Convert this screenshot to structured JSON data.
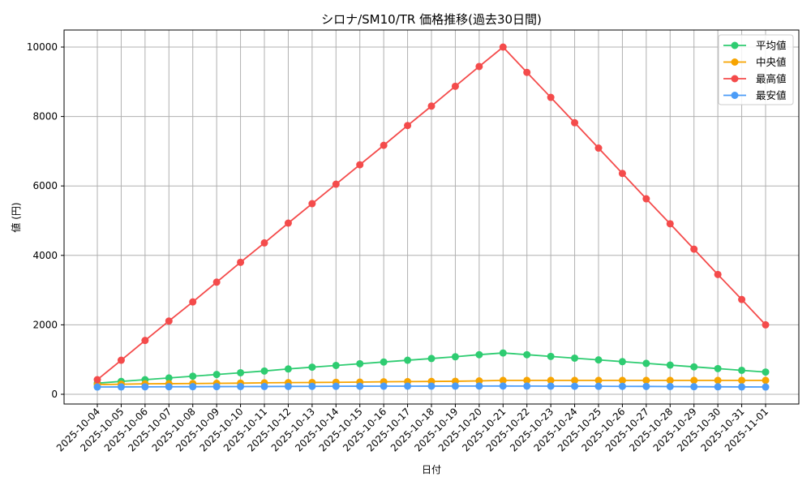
{
  "chart_data": {
    "type": "line",
    "title": "シロナ/SM10/TR 価格推移(過去30日間)",
    "xlabel": "日付",
    "ylabel": "値 (円)",
    "ylim": [
      -300,
      10500
    ],
    "yticks": [
      0,
      2000,
      4000,
      6000,
      8000,
      10000
    ],
    "grid": true,
    "legend_position": "upper right",
    "x": [
      "2025-10-04",
      "2025-10-05",
      "2025-10-06",
      "2025-10-07",
      "2025-10-08",
      "2025-10-09",
      "2025-10-10",
      "2025-10-11",
      "2025-10-12",
      "2025-10-13",
      "2025-10-14",
      "2025-10-15",
      "2025-10-16",
      "2025-10-17",
      "2025-10-18",
      "2025-10-19",
      "2025-10-20",
      "2025-10-21",
      "2025-10-22",
      "2025-10-23",
      "2025-10-24",
      "2025-10-25",
      "2025-10-26",
      "2025-10-27",
      "2025-10-28",
      "2025-10-29",
      "2025-10-30",
      "2025-10-31",
      "2025-11-01"
    ],
    "series": [
      {
        "name": "平均値",
        "color": "#2ecc71",
        "values": [
          320,
          370,
          420,
          470,
          520,
          570,
          620,
          670,
          730,
          780,
          830,
          880,
          930,
          980,
          1030,
          1080,
          1140,
          1190,
          1140,
          1090,
          1040,
          990,
          940,
          890,
          840,
          790,
          740,
          690,
          640
        ]
      },
      {
        "name": "中央値",
        "color": "#f7a400",
        "values": [
          280,
          290,
          300,
          305,
          310,
          315,
          320,
          330,
          335,
          340,
          345,
          350,
          360,
          365,
          370,
          375,
          385,
          400,
          400,
          400,
          400,
          400,
          400,
          400,
          400,
          400,
          400,
          400,
          400
        ]
      },
      {
        "name": "最高値",
        "color": "#f44b4b",
        "values": [
          420,
          980,
          1550,
          2110,
          2660,
          3230,
          3800,
          4360,
          4930,
          5490,
          6050,
          6610,
          7170,
          7740,
          8300,
          8870,
          9440,
          10000,
          9270,
          8550,
          7820,
          7090,
          6360,
          5630,
          4910,
          4180,
          3450,
          2730,
          2000
        ]
      },
      {
        "name": "最安値",
        "color": "#4b9cf7",
        "values": [
          210,
          212,
          214,
          216,
          218,
          220,
          222,
          224,
          226,
          228,
          230,
          232,
          233,
          234,
          235,
          236,
          237,
          238,
          236,
          234,
          232,
          230,
          228,
          226,
          222,
          218,
          215,
          212,
          210
        ]
      }
    ]
  }
}
